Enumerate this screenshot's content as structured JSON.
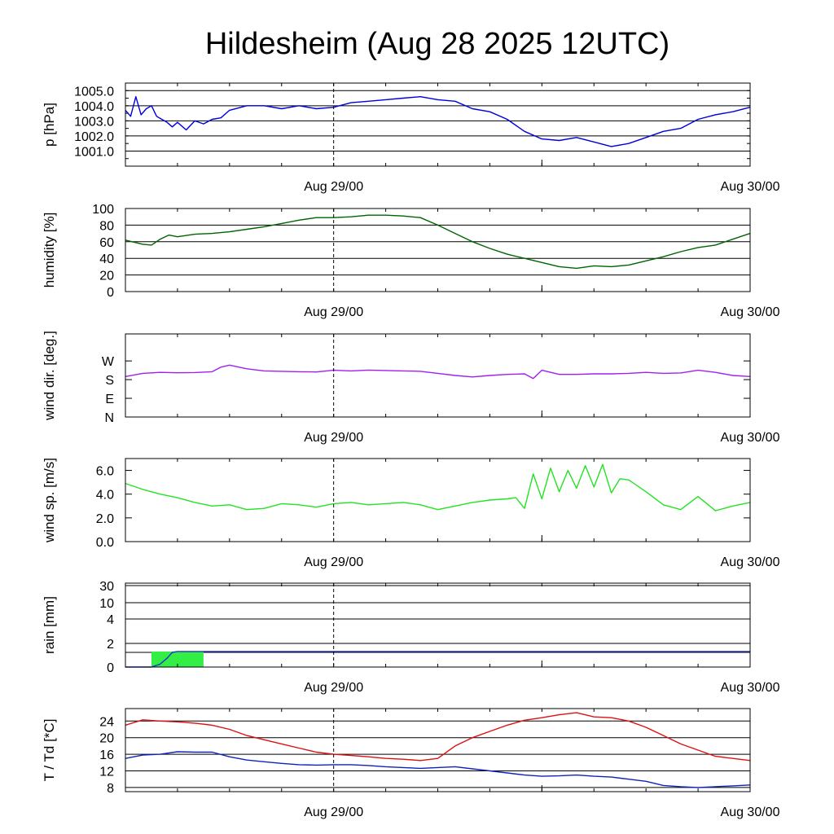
{
  "title": "Hildesheim (Aug 28 2025 12UTC)",
  "colors": {
    "pressure": "#0000dd",
    "humidity": "#006400",
    "wind_dir": "#a020f0",
    "wind_speed": "#22e422",
    "rain_line": "#2233cc",
    "rain_bar": "#33ee44",
    "temperature": "#dd1111",
    "dewpoint": "#1122bb"
  },
  "chart_data": [
    {
      "type": "line",
      "ylabel": "p [hPa]",
      "ylim": [
        1000.0,
        1005.5
      ],
      "y_ticks": [
        "1001.0",
        "1002.0",
        "1003.0",
        "1004.0",
        "1005.0"
      ],
      "grid": true,
      "x_ticks": [
        "Aug 29/00",
        "Aug 30/00"
      ],
      "xlim_hours": [
        0,
        36
      ],
      "series": [
        {
          "color": "pressure",
          "x": [
            0,
            0.3,
            0.6,
            0.9,
            1.2,
            1.5,
            1.8,
            2.1,
            2.4,
            2.7,
            3.0,
            3.5,
            4.0,
            4.5,
            5.0,
            5.5,
            6.0,
            7.0,
            8.0,
            9.0,
            10.0,
            11.0,
            12.0,
            13.0,
            14.0,
            15.0,
            16.0,
            17.0,
            18.0,
            19.0,
            20.0,
            21.0,
            22.0,
            23.0,
            24.0,
            25.0,
            26.0,
            27.0,
            28.0,
            29.0,
            30.0,
            31.0,
            32.0,
            33.0,
            34.0,
            35.0,
            36.0
          ],
          "values": [
            1003.7,
            1003.3,
            1004.6,
            1003.4,
            1003.8,
            1004.0,
            1003.3,
            1003.1,
            1002.9,
            1002.6,
            1002.9,
            1002.4,
            1003.0,
            1002.8,
            1003.1,
            1003.2,
            1003.7,
            1004.0,
            1004.0,
            1003.8,
            1004.0,
            1003.8,
            1003.9,
            1004.2,
            1004.3,
            1004.4,
            1004.5,
            1004.6,
            1004.4,
            1004.3,
            1003.8,
            1003.6,
            1003.1,
            1002.3,
            1001.8,
            1001.7,
            1001.9,
            1001.6,
            1001.3,
            1001.5,
            1001.9,
            1002.3,
            1002.5,
            1003.1,
            1003.4,
            1003.6,
            1003.9
          ]
        }
      ]
    },
    {
      "type": "line",
      "ylabel": "humidity [%]",
      "ylim": [
        0,
        100
      ],
      "y_ticks": [
        "0",
        "20",
        "40",
        "60",
        "80",
        "100"
      ],
      "grid": true,
      "x_ticks": [
        "Aug 29/00",
        "Aug 30/00"
      ],
      "xlim_hours": [
        0,
        36
      ],
      "series": [
        {
          "color": "humidity",
          "x": [
            0,
            1,
            1.5,
            2,
            2.5,
            3,
            4,
            5,
            6,
            7,
            8,
            9,
            10,
            11,
            12,
            13,
            14,
            15,
            16,
            17,
            18,
            19,
            20,
            21,
            22,
            23,
            24,
            25,
            26,
            27,
            28,
            29,
            30,
            31,
            32,
            33,
            34,
            35,
            36
          ],
          "values": [
            62,
            57,
            56,
            63,
            68,
            66,
            69,
            70,
            72,
            75,
            78,
            82,
            86,
            89,
            89,
            90,
            92,
            92,
            91,
            89,
            80,
            70,
            60,
            52,
            45,
            40,
            35,
            30,
            28,
            31,
            30,
            32,
            37,
            42,
            48,
            53,
            56,
            63,
            70
          ]
        }
      ]
    },
    {
      "type": "line",
      "ylabel": "wind dir. [deg.]",
      "ylim": [
        0,
        400
      ],
      "y_ticks": [
        "N",
        "E",
        "S",
        "W"
      ],
      "y_tick_values": [
        0,
        90,
        180,
        270
      ],
      "grid": false,
      "x_ticks": [
        "Aug 29/00",
        "Aug 30/00"
      ],
      "xlim_hours": [
        0,
        36
      ],
      "series": [
        {
          "color": "wind_dir",
          "x": [
            0,
            1,
            2,
            3,
            4,
            5,
            5.5,
            6,
            7,
            8,
            9,
            10,
            11,
            12,
            13,
            14,
            15,
            16,
            17,
            18,
            19,
            20,
            21,
            22,
            23,
            23.5,
            24,
            25,
            26,
            27,
            28,
            29,
            30,
            31,
            32,
            33,
            34,
            35,
            36
          ],
          "values": [
            195,
            210,
            215,
            213,
            214,
            218,
            240,
            250,
            232,
            222,
            220,
            218,
            217,
            225,
            222,
            226,
            224,
            222,
            220,
            210,
            200,
            193,
            200,
            205,
            208,
            185,
            225,
            205,
            205,
            208,
            208,
            210,
            215,
            210,
            212,
            225,
            215,
            200,
            195
          ]
        }
      ]
    },
    {
      "type": "line",
      "ylabel": "wind sp. [m/s]",
      "ylim": [
        0,
        7
      ],
      "y_ticks": [
        "0.0",
        "2.0",
        "4.0",
        "6.0"
      ],
      "grid": false,
      "x_ticks": [
        "Aug 29/00",
        "Aug 30/00"
      ],
      "xlim_hours": [
        0,
        36
      ],
      "series": [
        {
          "color": "wind_speed",
          "x": [
            0,
            1,
            2,
            3,
            4,
            5,
            6,
            7,
            8,
            9,
            10,
            11,
            12,
            13,
            14,
            15,
            16,
            17,
            18,
            19,
            20,
            21,
            22,
            22.5,
            23,
            23.5,
            24,
            24.5,
            25,
            25.5,
            26,
            26.5,
            27,
            27.5,
            28,
            28.5,
            29,
            30,
            31,
            32,
            33,
            34,
            35,
            36
          ],
          "values": [
            4.9,
            4.4,
            4.0,
            3.7,
            3.3,
            3.0,
            3.1,
            2.7,
            2.8,
            3.2,
            3.1,
            2.9,
            3.2,
            3.3,
            3.1,
            3.2,
            3.3,
            3.1,
            2.7,
            3.0,
            3.3,
            3.5,
            3.6,
            3.7,
            2.8,
            5.7,
            3.6,
            6.2,
            4.2,
            6.0,
            4.5,
            6.4,
            4.6,
            6.5,
            4.1,
            5.3,
            5.2,
            4.2,
            3.1,
            2.7,
            3.8,
            2.6,
            3.0,
            3.3
          ]
        }
      ]
    },
    {
      "type": "area",
      "ylabel": "rain [mm]",
      "ylim": [
        0,
        30
      ],
      "y_ticks": [
        "0",
        "1",
        "2",
        "4",
        "10",
        "30"
      ],
      "y_tick_labels_shown": [
        "0",
        "2",
        "4",
        "10",
        "30"
      ],
      "y_scale": "nonlinear",
      "grid": true,
      "x_ticks": [
        "Aug 29/00",
        "Aug 30/00"
      ],
      "xlim_hours": [
        0,
        36
      ],
      "bars": [
        {
          "x_start": 1.5,
          "x_end": 4.5,
          "value": 1.1
        }
      ],
      "series": [
        {
          "color": "rain_line",
          "x": [
            0,
            1.5,
            2.0,
            2.4,
            2.7,
            3.0,
            36
          ],
          "values": [
            0,
            0,
            0.2,
            0.6,
            1.0,
            1.1,
            1.1
          ]
        }
      ]
    },
    {
      "type": "line",
      "ylabel": "T / Td [*C]",
      "ylim": [
        7,
        27
      ],
      "y_ticks": [
        "8",
        "12",
        "16",
        "20",
        "24"
      ],
      "grid": true,
      "x_ticks": [
        "Aug 29/00",
        "Aug 30/00"
      ],
      "xlim_hours": [
        0,
        36
      ],
      "series": [
        {
          "color": "temperature",
          "x": [
            0,
            1,
            2,
            3,
            4,
            5,
            6,
            7,
            8,
            9,
            10,
            11,
            12,
            13,
            14,
            15,
            16,
            17,
            18,
            19,
            20,
            21,
            22,
            23,
            24,
            25,
            26,
            27,
            28,
            29,
            30,
            31,
            32,
            33,
            34,
            35,
            36
          ],
          "values": [
            23.0,
            24.3,
            24.0,
            23.8,
            23.5,
            23.0,
            22.0,
            20.5,
            19.5,
            18.5,
            17.5,
            16.5,
            16.0,
            15.7,
            15.4,
            15.0,
            14.8,
            14.5,
            15.0,
            18.0,
            20.0,
            21.5,
            23.0,
            24.2,
            24.8,
            25.5,
            26.0,
            25.0,
            24.8,
            24.0,
            22.5,
            20.5,
            18.5,
            17.0,
            15.5,
            15.0,
            14.5
          ]
        },
        {
          "color": "dewpoint",
          "x": [
            0,
            1,
            2,
            3,
            4,
            5,
            6,
            7,
            8,
            9,
            10,
            11,
            12,
            13,
            14,
            15,
            16,
            17,
            18,
            19,
            20,
            21,
            22,
            23,
            24,
            25,
            26,
            27,
            28,
            29,
            30,
            31,
            32,
            33,
            34,
            35,
            36
          ],
          "values": [
            15.0,
            15.8,
            16.0,
            16.6,
            16.5,
            16.5,
            15.4,
            14.6,
            14.2,
            13.8,
            13.5,
            13.4,
            13.5,
            13.5,
            13.3,
            13.0,
            12.8,
            12.6,
            12.8,
            13.0,
            12.5,
            12.0,
            11.5,
            11.0,
            10.7,
            10.8,
            11.0,
            10.7,
            10.5,
            10.0,
            9.5,
            8.5,
            8.2,
            8.0,
            8.2,
            8.4,
            8.6
          ]
        }
      ]
    }
  ]
}
